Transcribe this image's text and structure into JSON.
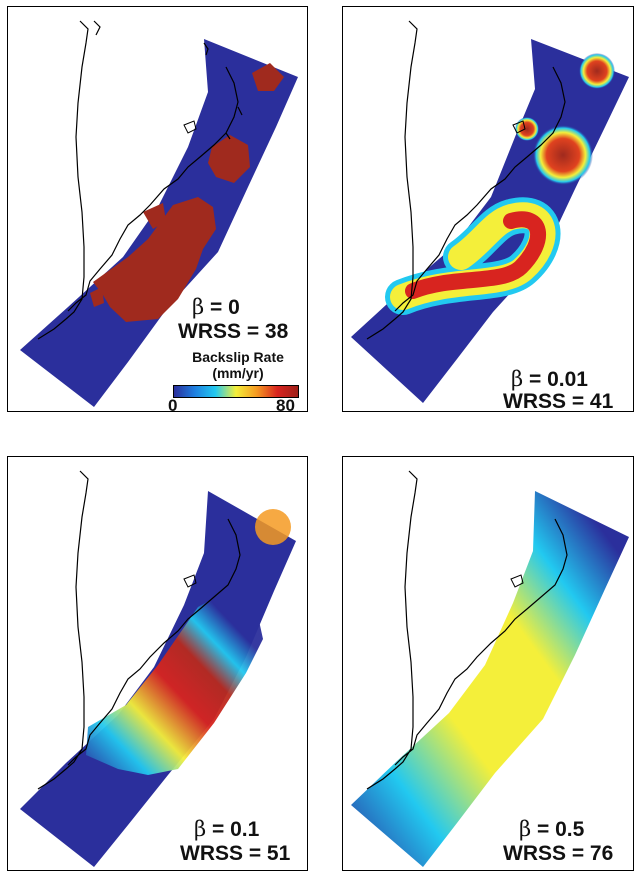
{
  "panels": [
    {
      "beta_symbol": "β",
      "beta_text": " = 0",
      "wrss": "WRSS = 38",
      "style": "sharp"
    },
    {
      "beta_symbol": "β",
      "beta_text": " = 0.01",
      "wrss": "WRSS = 41",
      "style": "rings"
    },
    {
      "beta_symbol": "β",
      "beta_text": " = 0.1",
      "wrss": "WRSS = 51",
      "style": "smooth"
    },
    {
      "beta_symbol": "β",
      "beta_text": " = 0.5",
      "wrss": "WRSS = 76",
      "style": "flat"
    }
  ],
  "colorbar": {
    "title_line1": "Backslip Rate",
    "title_line2": "(mm/yr)",
    "min_label": "0",
    "max_label": "80",
    "min_value": 0,
    "max_value": 80,
    "colors": [
      "#2b2f9c",
      "#1f7fe0",
      "#22c9f0",
      "#f4ef3a",
      "#f59a22",
      "#d8241f",
      "#9e1f18"
    ]
  }
}
